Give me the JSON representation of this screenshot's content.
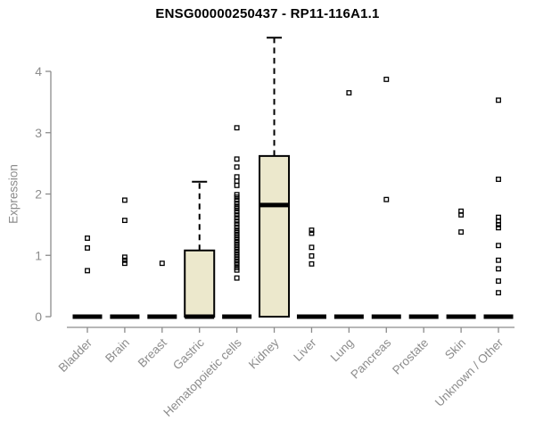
{
  "chart_data": {
    "type": "boxplot",
    "title": "ENSG00000250437 - RP11-116A1.1",
    "ylabel": "Expression",
    "xlabel": "",
    "ylim": [
      0,
      4.55
    ],
    "yticks": [
      "0",
      "1",
      "2",
      "3",
      "4"
    ],
    "grid": false,
    "legend": "none",
    "colors": {
      "box_fill": "#ECE8CC",
      "box_stroke": "#000000",
      "median": "#000000",
      "outlier": "#000000",
      "axis": "#8C8C8C",
      "tick_label": "#8C8C8C",
      "title": "#000000",
      "background": "#FFFFFF"
    },
    "categories": [
      "Bladder",
      "Brain",
      "Breast",
      "Gastric",
      "Hematopoietic cells",
      "Kidney",
      "Liver",
      "Lung",
      "Pancreas",
      "Prostate",
      "Skin",
      "Unknown / Other"
    ],
    "series": [
      {
        "name": "Bladder",
        "q1": 0,
        "median": 0,
        "q3": 0,
        "whisker_low": 0,
        "whisker_high": 0,
        "outliers": [
          1.28,
          1.12,
          0.75
        ]
      },
      {
        "name": "Brain",
        "q1": 0,
        "median": 0,
        "q3": 0,
        "whisker_low": 0,
        "whisker_high": 0,
        "outliers": [
          1.9,
          1.57,
          0.97,
          0.92,
          0.87
        ]
      },
      {
        "name": "Breast",
        "q1": 0,
        "median": 0,
        "q3": 0,
        "whisker_low": 0,
        "whisker_high": 0,
        "outliers": [
          0.87
        ]
      },
      {
        "name": "Gastric",
        "q1": 0,
        "median": 0,
        "q3": 1.08,
        "whisker_low": 0,
        "whisker_high": 2.2,
        "outliers": []
      },
      {
        "name": "Hematopoietic cells",
        "q1": 0,
        "median": 0,
        "q3": 0,
        "whisker_low": 0,
        "whisker_high": 0,
        "outliers": [
          3.08,
          2.57,
          2.44,
          2.28,
          2.21,
          2.14,
          1.99,
          1.95,
          1.9,
          1.85,
          1.8,
          1.76,
          1.71,
          1.66,
          1.61,
          1.56,
          1.51,
          1.46,
          1.41,
          1.37,
          1.33,
          1.29,
          1.25,
          1.21,
          1.17,
          1.13,
          1.09,
          1.05,
          1.01,
          0.97,
          0.93,
          0.89,
          0.85,
          0.8,
          0.76,
          0.63
        ]
      },
      {
        "name": "Kidney",
        "q1": 0,
        "median": 1.82,
        "q3": 2.62,
        "whisker_low": 0,
        "whisker_high": 4.55,
        "outliers": []
      },
      {
        "name": "Liver",
        "q1": 0,
        "median": 0,
        "q3": 0,
        "whisker_low": 0,
        "whisker_high": 0,
        "outliers": [
          1.41,
          1.36,
          1.13,
          0.99,
          0.86
        ]
      },
      {
        "name": "Lung",
        "q1": 0,
        "median": 0,
        "q3": 0,
        "whisker_low": 0,
        "whisker_high": 0,
        "outliers": [
          3.65
        ]
      },
      {
        "name": "Pancreas",
        "q1": 0,
        "median": 0,
        "q3": 0,
        "whisker_low": 0,
        "whisker_high": 0,
        "outliers": [
          3.87,
          1.91
        ]
      },
      {
        "name": "Prostate",
        "q1": 0,
        "median": 0,
        "q3": 0,
        "whisker_low": 0,
        "whisker_high": 0,
        "outliers": []
      },
      {
        "name": "Skin",
        "q1": 0,
        "median": 0,
        "q3": 0,
        "whisker_low": 0,
        "whisker_high": 0,
        "outliers": [
          1.72,
          1.66,
          1.38
        ]
      },
      {
        "name": "Unknown / Other",
        "q1": 0,
        "median": 0,
        "q3": 0,
        "whisker_low": 0,
        "whisker_high": 0,
        "outliers": [
          3.53,
          2.24,
          1.62,
          1.56,
          1.5,
          1.45,
          1.16,
          0.92,
          0.78,
          0.58,
          0.39
        ]
      }
    ]
  }
}
